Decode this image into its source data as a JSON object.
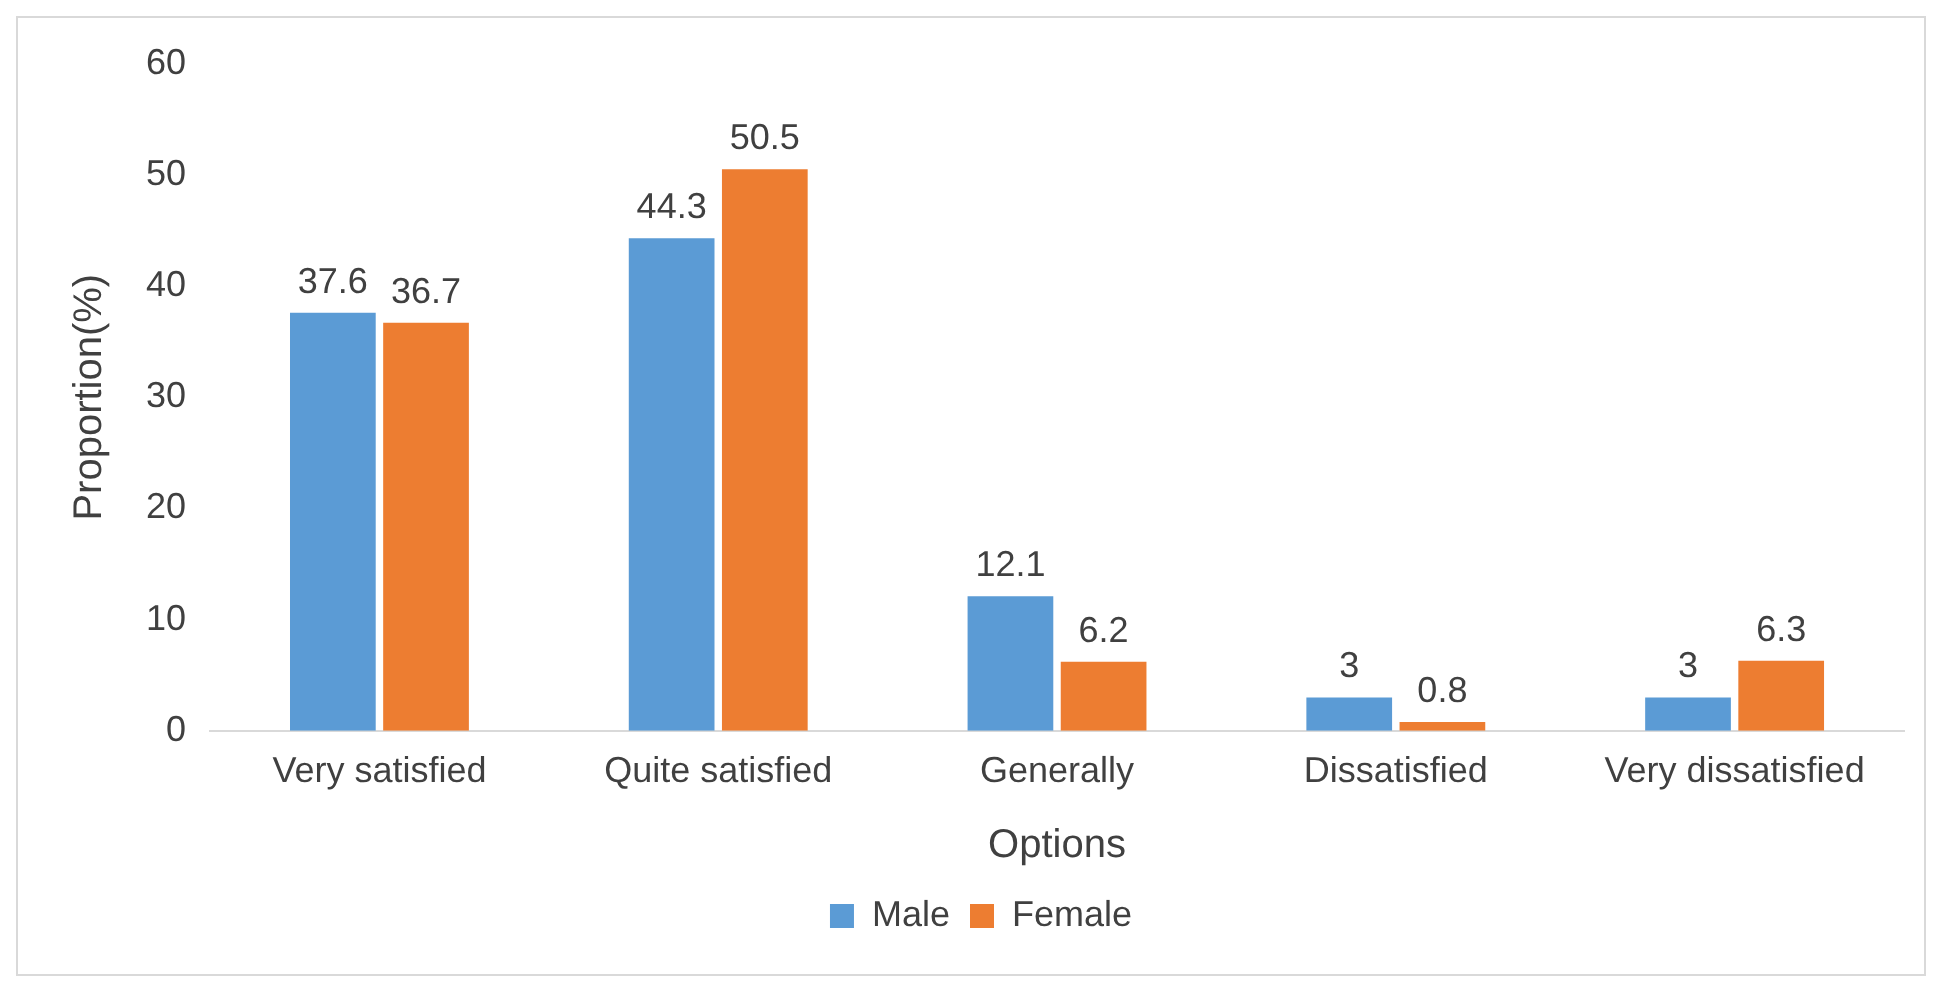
{
  "chart_data": {
    "type": "bar",
    "xlabel": "Options",
    "ylabel": "Proportion(%)",
    "categories": [
      "Very satisfied",
      "Quite satisfied",
      "Generally",
      "Dissatisfied",
      "Very dissatisfied"
    ],
    "series": [
      {
        "name": "Male",
        "color": "#5b9bd5",
        "values": [
          37.6,
          44.3,
          12.1,
          3,
          3
        ]
      },
      {
        "name": "Female",
        "color": "#ed7d31",
        "values": [
          36.7,
          50.5,
          6.2,
          0.8,
          6.3
        ]
      }
    ],
    "ylim": [
      0,
      60
    ],
    "yticks": [
      0,
      10,
      20,
      30,
      40,
      50,
      60
    ],
    "grid": false,
    "legend": "bottom",
    "data_labels": true
  }
}
